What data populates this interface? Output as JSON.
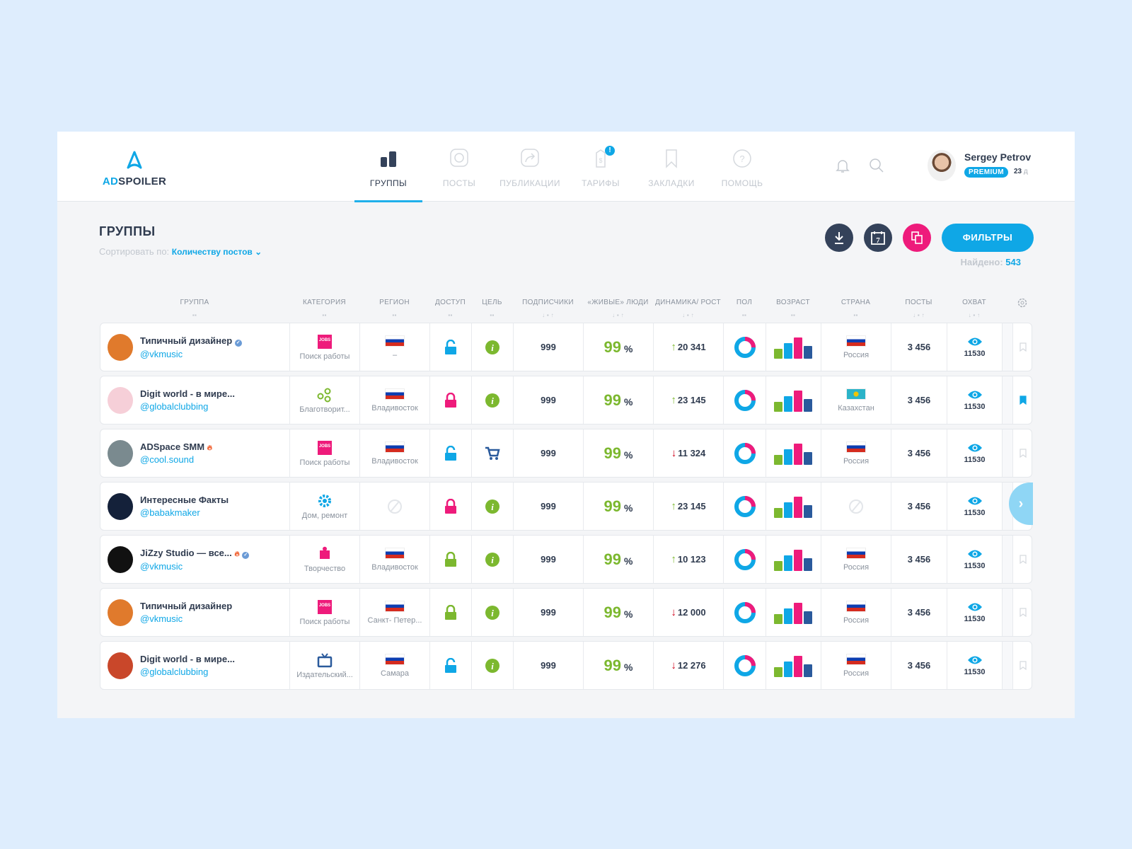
{
  "brand": {
    "prefix": "AD",
    "suffix": "SPOILER"
  },
  "nav": [
    {
      "label": "ГРУППЫ",
      "icon": "bars-icon",
      "active": true
    },
    {
      "label": "ПОСТЫ",
      "icon": "chat-icon"
    },
    {
      "label": "ПУБЛИКАЦИИ",
      "icon": "share-icon"
    },
    {
      "label": "ТАРИФЫ",
      "icon": "price-tag-icon",
      "badge": "!"
    },
    {
      "label": "ЗАКЛАДКИ",
      "icon": "bookmark-icon"
    },
    {
      "label": "ПОМОЩЬ",
      "icon": "help-icon"
    }
  ],
  "user": {
    "name": "Sergey Petrov",
    "plan": "PREMIUM",
    "days": "23",
    "days_unit": "д"
  },
  "page": {
    "title": "ГРУППЫ",
    "sort_label": "Сортировать по:",
    "sort_value": "Количеству постов",
    "filters_label": "ФИЛЬТРЫ",
    "found_label": "Найдено:",
    "found_count": "543",
    "calendar_day": "7"
  },
  "columns": [
    "ГРУППА",
    "КАТЕГОРИЯ",
    "РЕГИОН",
    "ДОСТУП",
    "ЦЕЛЬ",
    "ПОДПИСЧИКИ",
    "«ЖИВЫЕ» ЛЮДИ",
    "ДИНАМИКА/ РОСТ",
    "ПОЛ",
    "ВОЗРАСТ",
    "СТРАНА",
    "ПОСТЫ",
    "ОХВАТ"
  ],
  "colors": {
    "accent": "#0fa7e6",
    "pink": "#ee1b7b",
    "green": "#7cb82f",
    "dark": "#34425a",
    "navy": "#2a5a9c",
    "red": "#d0021b"
  },
  "rows": [
    {
      "name": "Типичный дизайнер",
      "handle": "@vkmusic",
      "verified": true,
      "fire": false,
      "avatar": "#e07a2c",
      "category": "Поиск работы",
      "cat_icon": "jobs-icon",
      "region": "–",
      "flag": "ru",
      "access": "open",
      "access_color": "#0fa7e6",
      "goal": "info",
      "subscribers": "999",
      "live": "99",
      "pct": "%",
      "dir": "up",
      "dynamic": "20 341",
      "country": "Россия",
      "posts": "3 456",
      "reach": "11530",
      "bookmarked": false
    },
    {
      "name": "Digit world - в мире...",
      "handle": "@globalclubbing",
      "verified": false,
      "fire": false,
      "avatar": "#f6cfd8",
      "category": "Благотворит...",
      "cat_icon": "charity-icon",
      "region": "Владивосток",
      "flag": "ru",
      "access": "closed",
      "access_color": "#ee1b7b",
      "goal": "info",
      "subscribers": "999",
      "live": "99",
      "pct": "%",
      "dir": "up",
      "dynamic": "23 145",
      "country": "Казахстан",
      "flag2": "kz",
      "posts": "3 456",
      "reach": "11530",
      "bookmarked": true
    },
    {
      "name": "ADSpace SMM",
      "handle": "@cool.sound",
      "verified": false,
      "fire": true,
      "avatar": "#7a8a8f",
      "category": "Поиск работы",
      "cat_icon": "jobs-icon",
      "region": "Владивосток",
      "flag": "ru",
      "access": "open",
      "access_color": "#0fa7e6",
      "goal": "cart",
      "subscribers": "999",
      "live": "99",
      "pct": "%",
      "dir": "down",
      "dynamic": "11 324",
      "country": "Россия",
      "posts": "3 456",
      "reach": "11530",
      "bookmarked": false
    },
    {
      "name": "Интересные Факты",
      "handle": "@babakmaker",
      "verified": false,
      "fire": false,
      "avatar": "#14213a",
      "category": "Дом, ремонт",
      "cat_icon": "gear-wrench-icon",
      "region": "",
      "flag": "none",
      "access": "closed",
      "access_color": "#ee1b7b",
      "goal": "info",
      "subscribers": "999",
      "live": "99",
      "pct": "%",
      "dir": "up",
      "dynamic": "23 145",
      "country": "",
      "flag2": "none",
      "posts": "3 456",
      "reach": "11530",
      "bookmarked": false,
      "next": true
    },
    {
      "name": "JiZzy Studio — все...",
      "handle": "@vkmusic",
      "verified": true,
      "fire": true,
      "avatar": "#111",
      "category": "Творчество",
      "cat_icon": "puzzle-icon",
      "region": "Владивосток",
      "flag": "ru",
      "access": "closed",
      "access_color": "#7cb82f",
      "goal": "info",
      "subscribers": "999",
      "live": "99",
      "pct": "%",
      "dir": "up",
      "dynamic": "10 123",
      "country": "Россия",
      "posts": "3 456",
      "reach": "11530",
      "bookmarked": false
    },
    {
      "name": "Типичный дизайнер",
      "handle": "@vkmusic",
      "verified": false,
      "fire": false,
      "avatar": "#e07a2c",
      "category": "Поиск работы",
      "cat_icon": "jobs-icon",
      "region": "Санкт- Петер...",
      "flag": "ru",
      "access": "closed",
      "access_color": "#7cb82f",
      "goal": "info",
      "subscribers": "999",
      "live": "99",
      "pct": "%",
      "dir": "down",
      "dynamic": "12 000",
      "country": "Россия",
      "posts": "3 456",
      "reach": "11530",
      "bookmarked": false
    },
    {
      "name": "Digit world - в мире...",
      "handle": "@globalclubbing",
      "verified": false,
      "fire": false,
      "avatar": "#c9472a",
      "category": "Издательский...",
      "cat_icon": "tv-icon",
      "region": "Самара",
      "flag": "ru",
      "access": "open",
      "access_color": "#0fa7e6",
      "goal": "info",
      "subscribers": "999",
      "live": "99",
      "pct": "%",
      "dir": "down",
      "dynamic": "12 276",
      "country": "Россия",
      "posts": "3 456",
      "reach": "11530",
      "bookmarked": false
    }
  ]
}
